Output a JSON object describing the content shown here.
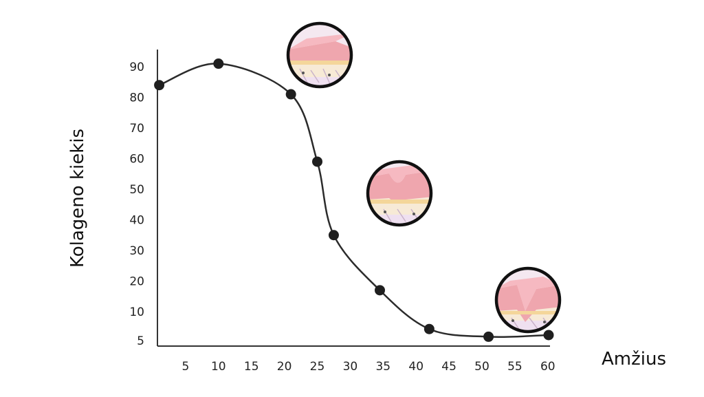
{
  "chart_data": {
    "type": "line",
    "title": "",
    "xlabel": "Amžius",
    "ylabel": "Kolageno kiekis",
    "x_ticks": [
      5,
      10,
      15,
      20,
      25,
      30,
      35,
      40,
      45,
      50,
      55,
      60
    ],
    "y_ticks": [
      5,
      10,
      20,
      30,
      40,
      50,
      60,
      70,
      80,
      90
    ],
    "xlim": [
      0,
      60
    ],
    "series": [
      {
        "x": [
          1,
          10,
          21,
          25,
          27.5,
          34.5,
          42,
          51,
          61
        ],
        "y": [
          84,
          91,
          81,
          59,
          35,
          17,
          7,
          1.5,
          0
        ],
        "markers": true,
        "smooth": true
      }
    ],
    "grid": false,
    "legend": "none",
    "colors": {
      "line": "#2b2b2b",
      "marker": "#1f1f1f",
      "axis": "#333333"
    },
    "illustrations": [
      "skin-healthy-icon",
      "skin-wrinkle-shallow-icon",
      "skin-wrinkle-deep-icon"
    ]
  }
}
